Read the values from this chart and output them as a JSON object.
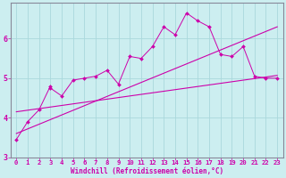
{
  "xlabel": "Windchill (Refroidissement éolien,°C)",
  "bg_color": "#cceef0",
  "grid_color": "#aad8dc",
  "line_color": "#cc00aa",
  "spine_color": "#888899",
  "xlim": [
    -0.5,
    23.5
  ],
  "ylim": [
    3.0,
    6.9
  ],
  "xticks": [
    0,
    1,
    2,
    3,
    4,
    5,
    6,
    7,
    8,
    9,
    10,
    11,
    12,
    13,
    14,
    15,
    16,
    17,
    18,
    19,
    20,
    21,
    22,
    23
  ],
  "yticks": [
    3,
    4,
    5,
    6
  ],
  "data_x": [
    0,
    1,
    2,
    3,
    3,
    4,
    5,
    6,
    7,
    8,
    9,
    10,
    11,
    12,
    13,
    14,
    15,
    16,
    17,
    18,
    19,
    20,
    21,
    22,
    23
  ],
  "data_y": [
    3.45,
    3.9,
    4.2,
    4.8,
    4.75,
    4.55,
    4.95,
    5.0,
    5.05,
    5.2,
    4.85,
    5.55,
    5.5,
    5.8,
    6.3,
    6.1,
    6.65,
    6.45,
    6.3,
    5.6,
    5.55,
    5.8,
    5.05,
    5.0,
    5.0
  ],
  "trend1_x": [
    0,
    23
  ],
  "trend1_y": [
    3.6,
    6.3
  ],
  "trend2_x": [
    0,
    23
  ],
  "trend2_y": [
    4.15,
    5.07
  ],
  "xlabel_fontsize": 5.5,
  "tick_fontsize": 5.5
}
